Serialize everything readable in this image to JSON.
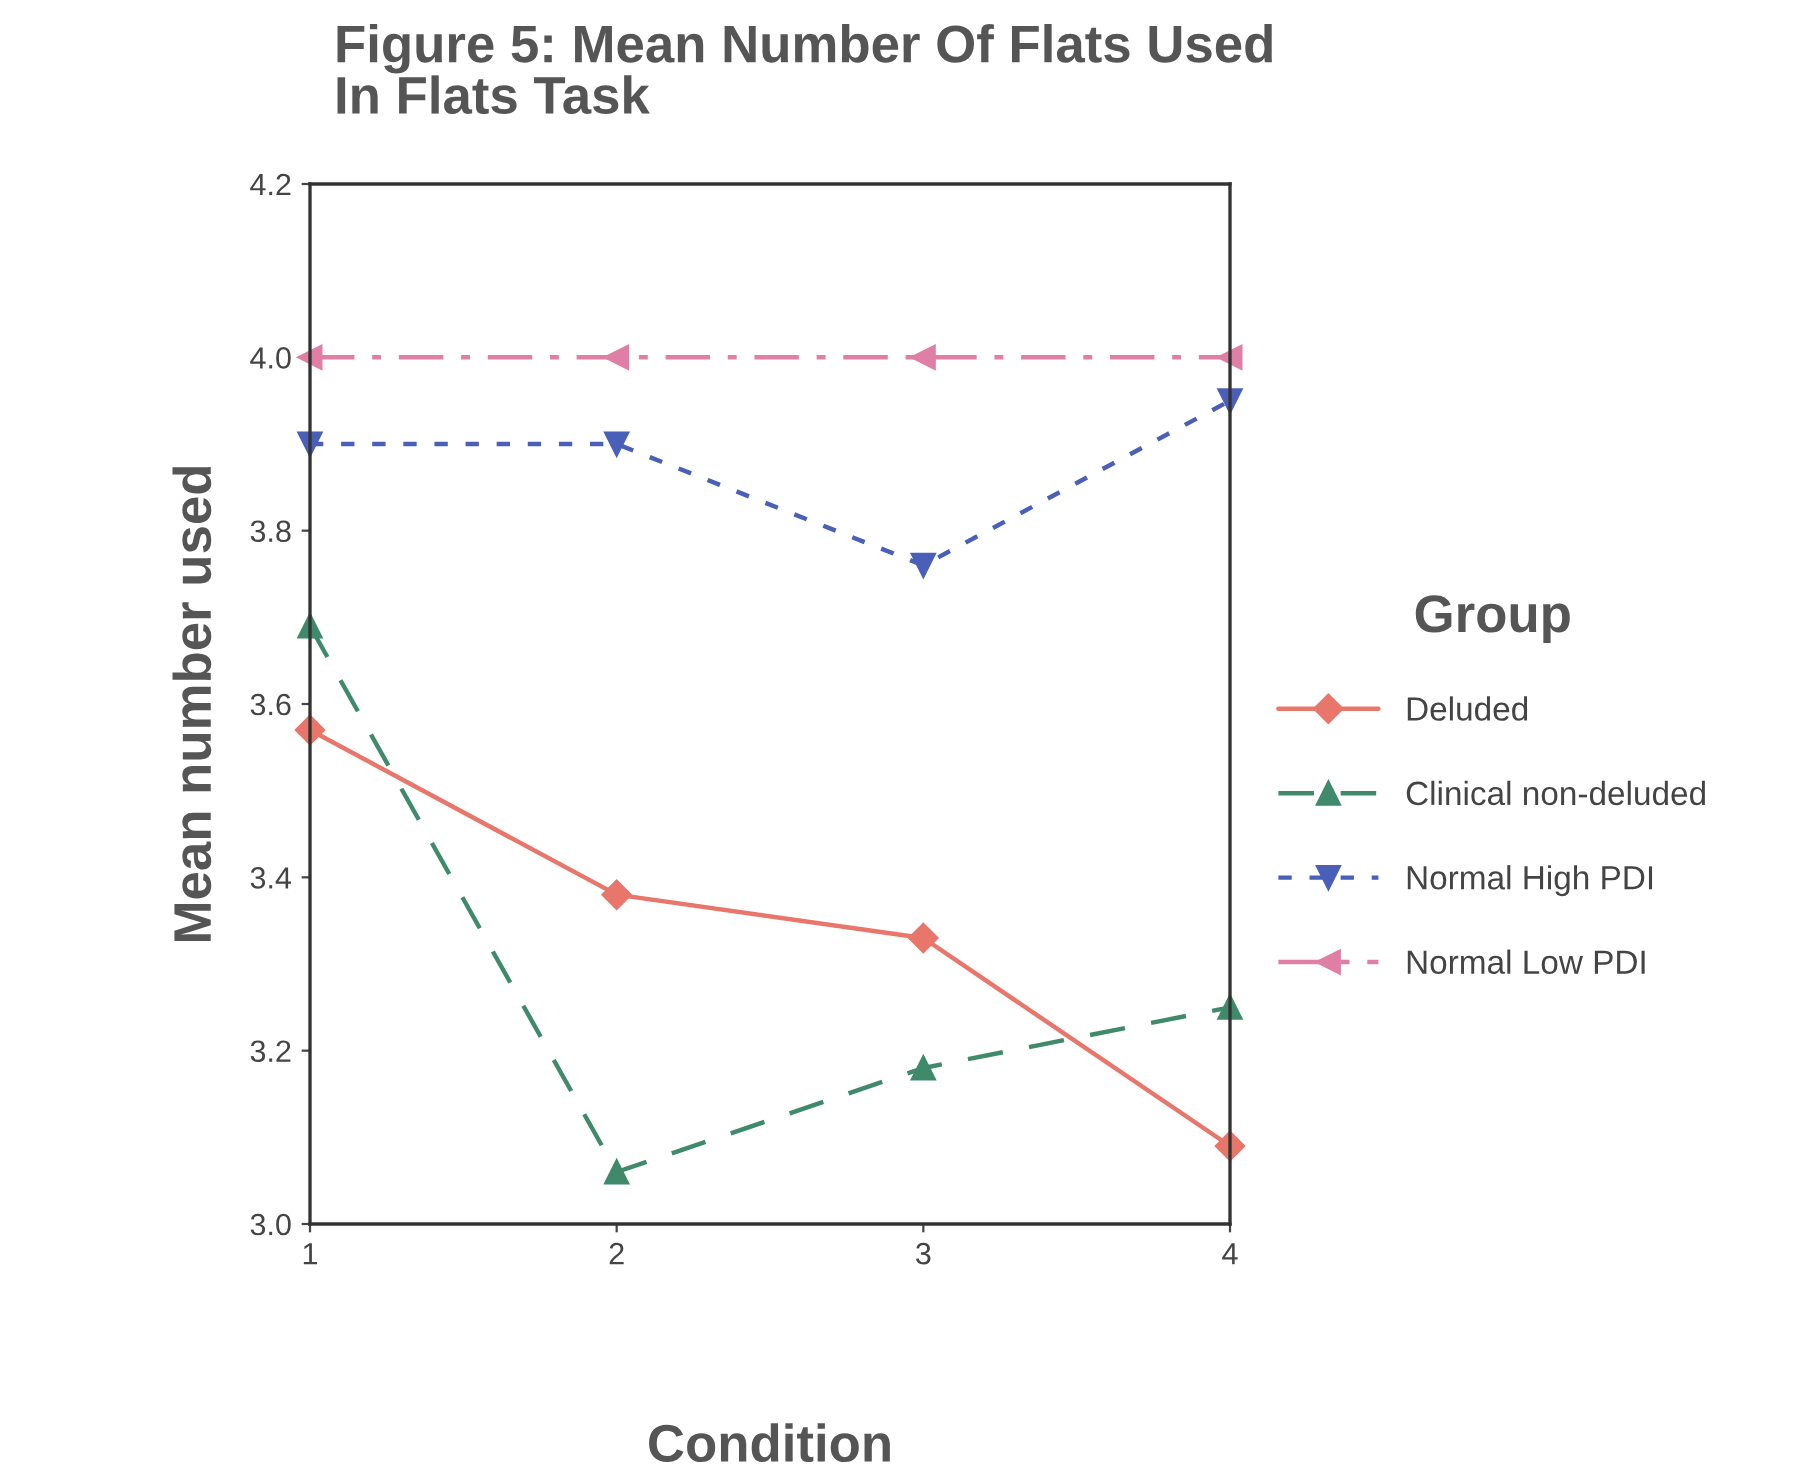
{
  "chart_data": {
    "type": "line",
    "title": "Figure 5: Mean Number Of Flats Used\nIn Flats Task",
    "xlabel": "Condition",
    "ylabel": "Mean number used",
    "legend_title": "Group",
    "x": [
      1,
      2,
      3,
      4
    ],
    "xlim": [
      1,
      4
    ],
    "xticks": [
      1,
      2,
      3,
      4
    ],
    "ylim": [
      3.0,
      4.2
    ],
    "yticks": [
      {
        "value": 3.0,
        "label": "3.0"
      },
      {
        "value": 3.2,
        "label": "3.2"
      },
      {
        "value": 3.4,
        "label": "3.4"
      },
      {
        "value": 3.6,
        "label": "3.6"
      },
      {
        "value": 3.8,
        "label": "3.8"
      },
      {
        "value": 4.0,
        "label": "4.0"
      },
      {
        "value": 4.2,
        "label": "4.2"
      }
    ],
    "grid": false,
    "legend": "right",
    "series": [
      {
        "name": "Deluded",
        "color": "#e8766a",
        "marker": "diamond",
        "line_style": "solid",
        "values": [
          3.57,
          3.38,
          3.33,
          3.09
        ]
      },
      {
        "name": "Clinical non-deluded",
        "color": "#3f8a6a",
        "marker": "triangle",
        "line_style": "dashed",
        "values": [
          3.69,
          3.06,
          3.18,
          3.25
        ]
      },
      {
        "name": "Normal High PDI",
        "color": "#4a5fb8",
        "marker": "triangle_down",
        "line_style": "dotted",
        "values": [
          3.9,
          3.9,
          3.76,
          3.95
        ]
      },
      {
        "name": "Normal Low PDI",
        "color": "#e07fa6",
        "marker": "triangle_left",
        "line_style": "dashdot",
        "values": [
          4.0,
          4.0,
          4.0,
          4.0
        ]
      }
    ]
  }
}
